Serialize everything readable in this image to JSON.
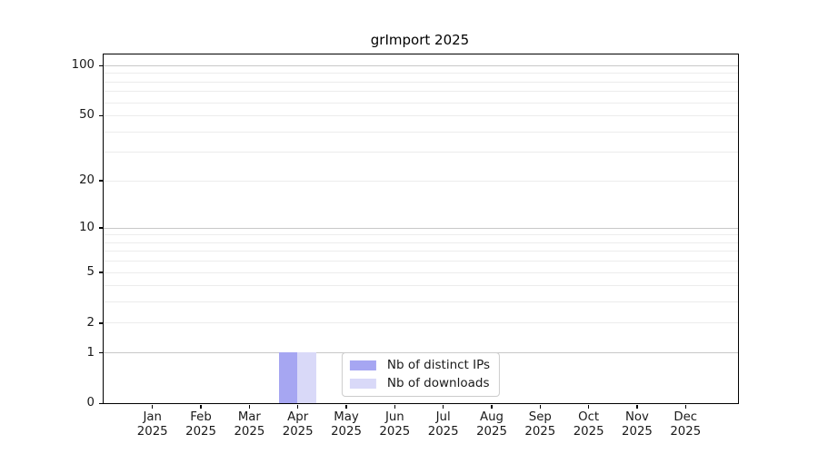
{
  "chart_data": {
    "type": "bar",
    "title": "grImport 2025",
    "categories": [
      "Jan",
      "Feb",
      "Mar",
      "Apr",
      "May",
      "Jun",
      "Jul",
      "Aug",
      "Sep",
      "Oct",
      "Nov",
      "Dec"
    ],
    "x_tick_year": "2025",
    "series": [
      {
        "name": "Nb of distinct IPs",
        "color": "#a6a6f2",
        "values": [
          0,
          0,
          0,
          1,
          0,
          0,
          0,
          0,
          0,
          0,
          0,
          0
        ]
      },
      {
        "name": "Nb of downloads",
        "color": "#d9d9f8",
        "values": [
          0,
          0,
          0,
          1,
          0,
          0,
          0,
          0,
          0,
          0,
          0,
          0
        ]
      }
    ],
    "y_scale": "log1p",
    "y_ticks": [
      0,
      1,
      2,
      5,
      10,
      20,
      50,
      100
    ],
    "y_top": 116,
    "grid_minor": [
      2,
      3,
      4,
      5,
      6,
      7,
      8,
      9,
      20,
      30,
      40,
      50,
      60,
      70,
      80,
      90
    ],
    "grid_major": [
      1,
      10,
      100
    ],
    "legend_position": "lower center",
    "colors": {
      "grid_minor": "#ececec",
      "grid_major": "#c8c8c8",
      "axis": "#000000",
      "text": "#1a1a1a",
      "background": "#ffffff"
    }
  }
}
